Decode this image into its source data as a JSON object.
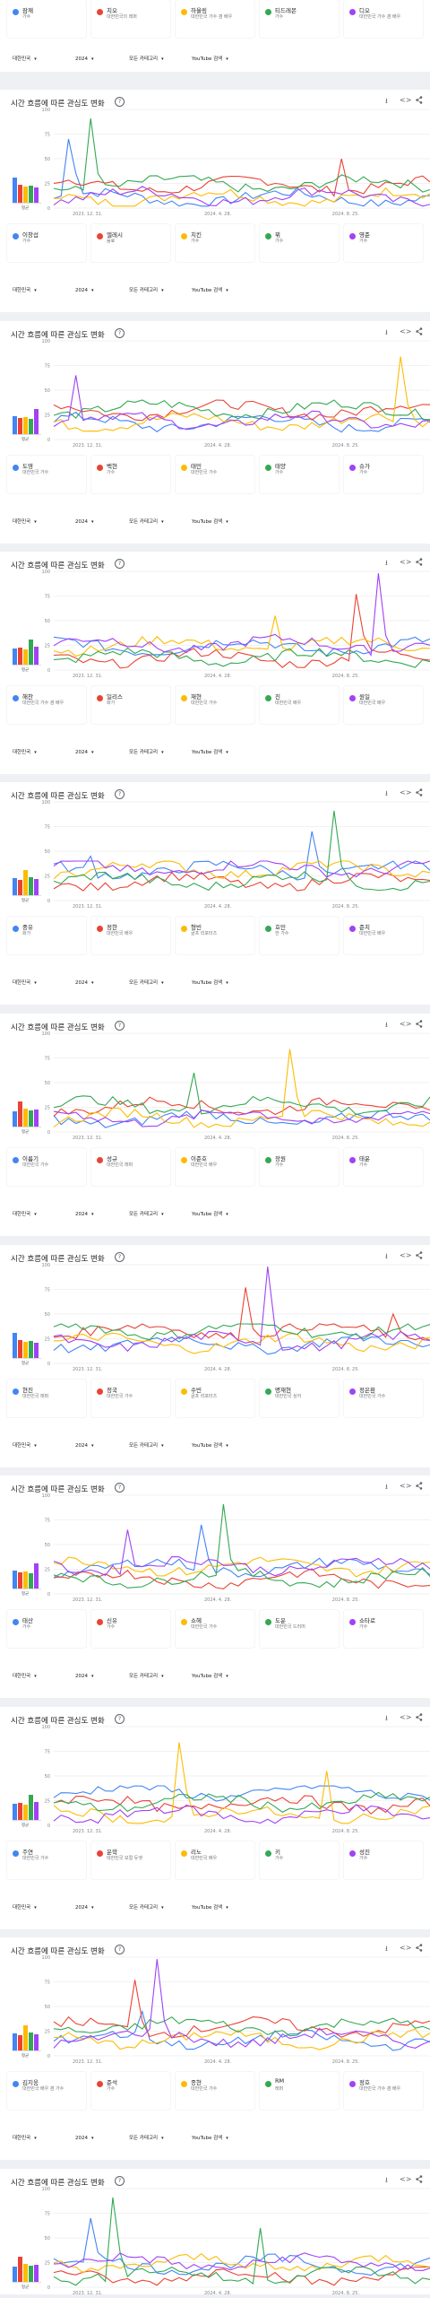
{
  "page": {
    "title": "시간 흐름에 따른 관심도 변화",
    "help_icon": "?",
    "download_icon": "⭳",
    "embed_icon": "<>",
    "share_icon": "share"
  },
  "controls": [
    {
      "label": "대한민국",
      "caret": "▾"
    },
    {
      "label": "2024",
      "caret": "▾"
    },
    {
      "label": "모든 카테고리",
      "caret": "▾"
    },
    {
      "label": "YouTube 검색",
      "caret": "▾"
    }
  ],
  "avg_label": "평균",
  "colors": {
    "blue": "#4285f4",
    "red": "#ea4335",
    "yellow": "#fbbc04",
    "green": "#34a853",
    "purple": "#a142f4"
  },
  "chart_data": [
    {
      "type": "line",
      "xtick_labels": [
        "2023. 12. 31.",
        "2024. 4. 28.",
        "2024. 8. 25."
      ],
      "yticks": [
        0,
        25,
        50,
        75,
        100
      ],
      "ylim": [
        0,
        100
      ]
    }
  ],
  "top_terms": [
    {
      "name": "잠깨",
      "sub": "가수"
    },
    {
      "name": "치오",
      "sub": "대한민국의 래퍼"
    },
    {
      "name": "하울링",
      "sub": "대한민국 가수 겸 배우"
    },
    {
      "name": "티드레몬",
      "sub": "가수"
    },
    {
      "name": "디오",
      "sub": "대한민국 가수 겸 배우"
    }
  ],
  "panels": [
    {
      "terms": [
        {
          "name": "이창섭",
          "sub": "가수"
        },
        {
          "name": "엘레시",
          "sub": "음료"
        },
        {
          "name": "치킨",
          "sub": "가수"
        },
        {
          "name": "뷔",
          "sub": "가수"
        },
        {
          "name": "영준",
          "sub": "가수"
        }
      ]
    },
    {
      "terms": [
        {
          "name": "도영",
          "sub": "대한민국 가수"
        },
        {
          "name": "백현",
          "sub": "가수"
        },
        {
          "name": "태민",
          "sub": "대한민국 가수"
        },
        {
          "name": "태양",
          "sub": "가수"
        },
        {
          "name": "슈가",
          "sub": "가수"
        }
      ]
    },
    {
      "terms": [
        {
          "name": "해찬",
          "sub": "대한민국 가수 겸 배우"
        },
        {
          "name": "일리스",
          "sub": "화가"
        },
        {
          "name": "재현",
          "sub": "대한민국 가수"
        },
        {
          "name": "진",
          "sub": "대한민국 배우"
        },
        {
          "name": "원일",
          "sub": "대한민국 배우"
        }
      ]
    },
    {
      "terms": [
        {
          "name": "중유",
          "sub": "화가"
        },
        {
          "name": "정한",
          "sub": "대한민국 배우"
        },
        {
          "name": "형빈",
          "sub": "골프 리포터즈"
        },
        {
          "name": "호민",
          "sub": "한 가수"
        },
        {
          "name": "준치",
          "sub": "대한민국 배우"
        }
      ]
    },
    {
      "terms": [
        {
          "name": "이름기",
          "sub": "대한민국 가수"
        },
        {
          "name": "성규",
          "sub": "대한민국 래퍼"
        },
        {
          "name": "이준호",
          "sub": "대한민국 배우"
        },
        {
          "name": "장원",
          "sub": "가수"
        },
        {
          "name": "태윤",
          "sub": "가수"
        }
      ]
    },
    {
      "terms": [
        {
          "name": "현진",
          "sub": "대한민국 래퍼"
        },
        {
          "name": "정국",
          "sub": "대한민국 가수"
        },
        {
          "name": "수빈",
          "sub": "골프 리포터즈"
        },
        {
          "name": "명재현",
          "sub": "대한민국 싱어"
        },
        {
          "name": "정은환",
          "sub": "대한민국 가수"
        }
      ]
    },
    {
      "terms": [
        {
          "name": "태산",
          "sub": "가수"
        },
        {
          "name": "신유",
          "sub": "가수"
        },
        {
          "name": "쇼헤",
          "sub": "대한민국 가수"
        },
        {
          "name": "도운",
          "sub": "대한민국 드러머"
        },
        {
          "name": "쇼타로",
          "sub": "가수"
        }
      ]
    },
    {
      "terms": [
        {
          "name": "주연",
          "sub": "대한민국 가수"
        },
        {
          "name": "운학",
          "sub": "대한민국 보컬 듀엣"
        },
        {
          "name": "리노",
          "sub": "대한민국 배우"
        },
        {
          "name": "키",
          "sub": "가수"
        },
        {
          "name": "성진",
          "sub": "가수"
        }
      ]
    },
    {
      "terms": [
        {
          "name": "김지웅",
          "sub": "대한민국 배우 겸 가수"
        },
        {
          "name": "준석",
          "sub": "가수"
        },
        {
          "name": "종현",
          "sub": "대한민국 가수"
        },
        {
          "name": "RM",
          "sub": "래퍼"
        },
        {
          "name": "정호",
          "sub": "대한민국 가수 겸 배우"
        }
      ]
    },
    {
      "terms": []
    }
  ]
}
